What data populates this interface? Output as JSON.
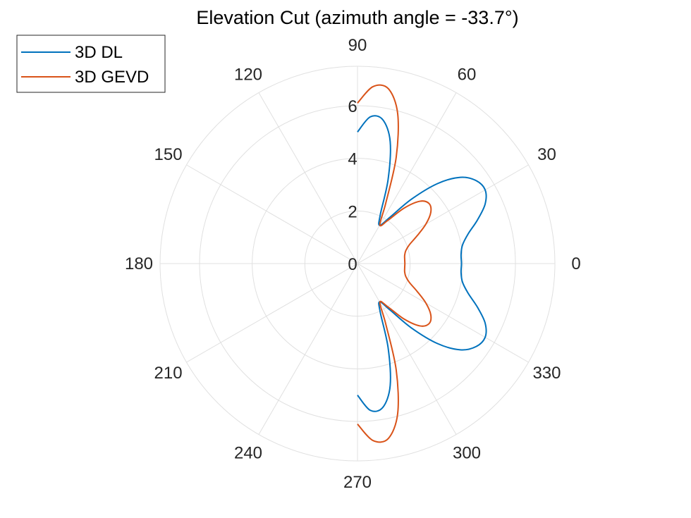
{
  "chart_data": {
    "type": "polar-line",
    "title": "Elevation Cut (azimuth angle = -33.7°)",
    "theta_unit": "degrees",
    "theta_ticks": [
      0,
      30,
      60,
      90,
      120,
      150,
      180,
      210,
      240,
      270,
      300,
      330
    ],
    "theta_tick_labels": [
      "0",
      "30",
      "60",
      "90",
      "120",
      "150",
      "180",
      "210",
      "240",
      "270",
      "300",
      "330"
    ],
    "r_ticks": [
      0,
      2,
      4,
      6
    ],
    "r_tick_labels": [
      "0",
      "2",
      "4",
      "6"
    ],
    "rlim": [
      0,
      7.5
    ],
    "grid": true,
    "legend_position": "top-left",
    "series": [
      {
        "name": "3D DL",
        "color": "#0072BD",
        "points": [
          {
            "theta": -90,
            "r": 5.0
          },
          {
            "theta": -85,
            "r": 5.6
          },
          {
            "theta": -80,
            "r": 5.55
          },
          {
            "theta": -75,
            "r": 4.8
          },
          {
            "theta": -70,
            "r": 3.4
          },
          {
            "theta": -65,
            "r": 2.05
          },
          {
            "theta": -60,
            "r": 1.68
          },
          {
            "theta": -55,
            "r": 2.15
          },
          {
            "theta": -50,
            "r": 3.2
          },
          {
            "theta": -45,
            "r": 4.3
          },
          {
            "theta": -40,
            "r": 5.1
          },
          {
            "theta": -35,
            "r": 5.5
          },
          {
            "theta": -30,
            "r": 5.6
          },
          {
            "theta": -25,
            "r": 5.35
          },
          {
            "theta": -20,
            "r": 4.85
          },
          {
            "theta": -15,
            "r": 4.35
          },
          {
            "theta": -10,
            "r": 4.05
          },
          {
            "theta": -5,
            "r": 3.95
          },
          {
            "theta": 0,
            "r": 3.95
          },
          {
            "theta": 5,
            "r": 3.95
          },
          {
            "theta": 10,
            "r": 4.05
          },
          {
            "theta": 15,
            "r": 4.35
          },
          {
            "theta": 20,
            "r": 4.85
          },
          {
            "theta": 25,
            "r": 5.35
          },
          {
            "theta": 30,
            "r": 5.6
          },
          {
            "theta": 35,
            "r": 5.5
          },
          {
            "theta": 40,
            "r": 5.1
          },
          {
            "theta": 45,
            "r": 4.3
          },
          {
            "theta": 50,
            "r": 3.2
          },
          {
            "theta": 55,
            "r": 2.15
          },
          {
            "theta": 60,
            "r": 1.68
          },
          {
            "theta": 65,
            "r": 2.05
          },
          {
            "theta": 70,
            "r": 3.4
          },
          {
            "theta": 75,
            "r": 4.8
          },
          {
            "theta": 80,
            "r": 5.55
          },
          {
            "theta": 85,
            "r": 5.6
          },
          {
            "theta": 90,
            "r": 5.0
          }
        ]
      },
      {
        "name": "3D GEVD",
        "color": "#D95319",
        "points": [
          {
            "theta": -90,
            "r": 6.1
          },
          {
            "theta": -85,
            "r": 6.75
          },
          {
            "theta": -80,
            "r": 6.75
          },
          {
            "theta": -75,
            "r": 5.9
          },
          {
            "theta": -70,
            "r": 4.3
          },
          {
            "theta": -65,
            "r": 2.55
          },
          {
            "theta": -60,
            "r": 1.7
          },
          {
            "theta": -55,
            "r": 2.0
          },
          {
            "theta": -50,
            "r": 2.75
          },
          {
            "theta": -45,
            "r": 3.35
          },
          {
            "theta": -40,
            "r": 3.55
          },
          {
            "theta": -35,
            "r": 3.4
          },
          {
            "theta": -30,
            "r": 3.0
          },
          {
            "theta": -25,
            "r": 2.5
          },
          {
            "theta": -20,
            "r": 2.1
          },
          {
            "theta": -15,
            "r": 1.9
          },
          {
            "theta": -10,
            "r": 1.82
          },
          {
            "theta": -5,
            "r": 1.8
          },
          {
            "theta": 0,
            "r": 1.8
          },
          {
            "theta": 5,
            "r": 1.8
          },
          {
            "theta": 10,
            "r": 1.82
          },
          {
            "theta": 15,
            "r": 1.9
          },
          {
            "theta": 20,
            "r": 2.1
          },
          {
            "theta": 25,
            "r": 2.5
          },
          {
            "theta": 30,
            "r": 3.0
          },
          {
            "theta": 35,
            "r": 3.4
          },
          {
            "theta": 40,
            "r": 3.55
          },
          {
            "theta": 45,
            "r": 3.35
          },
          {
            "theta": 50,
            "r": 2.75
          },
          {
            "theta": 55,
            "r": 2.0
          },
          {
            "theta": 60,
            "r": 1.7
          },
          {
            "theta": 65,
            "r": 2.55
          },
          {
            "theta": 70,
            "r": 4.3
          },
          {
            "theta": 75,
            "r": 5.9
          },
          {
            "theta": 80,
            "r": 6.75
          },
          {
            "theta": 85,
            "r": 6.75
          },
          {
            "theta": 90,
            "r": 6.1
          }
        ]
      }
    ]
  }
}
